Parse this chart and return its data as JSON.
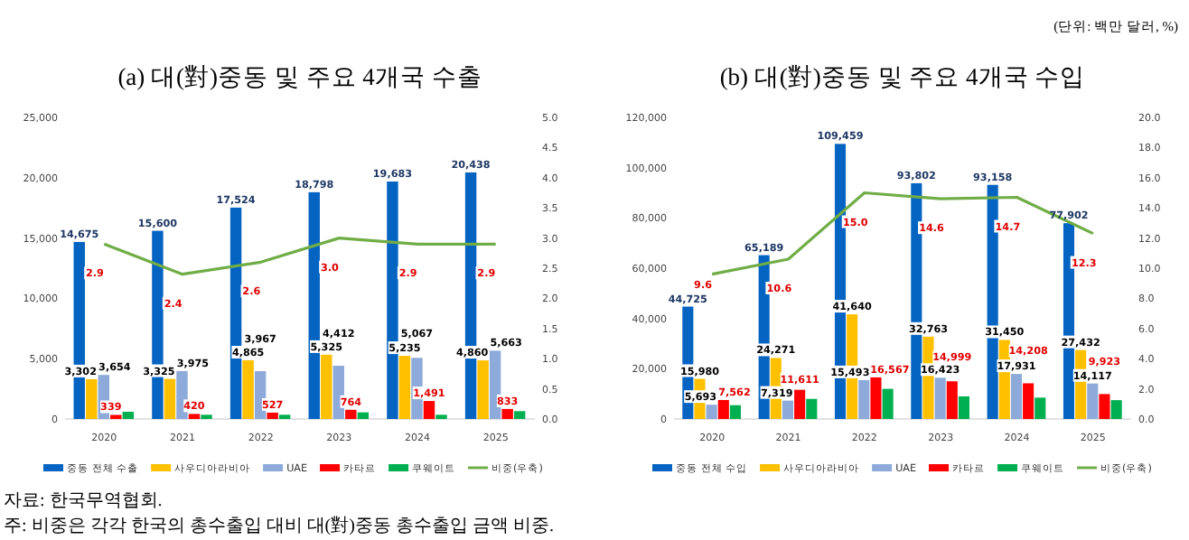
{
  "chart_data": [
    {
      "type": "bar",
      "title": "(a) 대(對)중동 및 주요 4개국 수출",
      "categories": [
        "2020",
        "2021",
        "2022",
        "2023",
        "2024",
        "2025"
      ],
      "ylim": [
        0,
        25000
      ],
      "yticks": [
        {
          "value": 0,
          "label": "0"
        },
        {
          "value": 5000,
          "label": "5,000"
        },
        {
          "value": 10000,
          "label": "10,000"
        },
        {
          "value": 15000,
          "label": "15,000"
        },
        {
          "value": 20000,
          "label": "20,000"
        },
        {
          "value": 25000,
          "label": "25,000"
        }
      ],
      "y2lim": [
        0,
        5
      ],
      "y2ticks": [
        {
          "value": 0,
          "label": "0.0"
        },
        {
          "value": 0.5,
          "label": "0.5"
        },
        {
          "value": 1,
          "label": "1.0"
        },
        {
          "value": 1.5,
          "label": "1.5"
        },
        {
          "value": 2,
          "label": "2.0"
        },
        {
          "value": 2.5,
          "label": "2.5"
        },
        {
          "value": 3,
          "label": "3.0"
        },
        {
          "value": 3.5,
          "label": "3.5"
        },
        {
          "value": 4,
          "label": "4.0"
        },
        {
          "value": 4.5,
          "label": "4.5"
        },
        {
          "value": 5,
          "label": "5.0"
        }
      ],
      "grid": false,
      "legend": "bottom",
      "series": [
        {
          "name": "중동 전체 수출",
          "color": "#0563c1",
          "values": [
            14675,
            15600,
            17524,
            18798,
            19683,
            20438
          ],
          "value_labels": [
            "14,675",
            "15,600",
            "17,524",
            "18,798",
            "19,683",
            "20,438"
          ]
        },
        {
          "name": "사우디아라비아",
          "color": "#ffc000",
          "values": [
            3302,
            3325,
            4865,
            5325,
            5235,
            4860
          ],
          "value_labels": [
            "3,302",
            "3,325",
            "4,865",
            "5,325",
            "5,235",
            "4,860"
          ]
        },
        {
          "name": "UAE",
          "color": "#8eaadb",
          "values": [
            3654,
            3975,
            3967,
            4412,
            5067,
            5663
          ],
          "value_labels": [
            "3,654",
            "3,975",
            "3,967",
            "4,412",
            "5,067",
            "5,663"
          ]
        },
        {
          "name": "카타르",
          "color": "#ff0000",
          "values": [
            339,
            420,
            527,
            764,
            1491,
            833
          ],
          "value_labels": [
            "339",
            "420",
            "527",
            "764",
            "1,491",
            "833"
          ]
        },
        {
          "name": "쿠웨이트",
          "color": "#00b050",
          "values": [
            600,
            350,
            350,
            550,
            350,
            650
          ]
        },
        {
          "name": "비중(우축)",
          "color": "#70ad47",
          "type": "line",
          "axis": "y2",
          "values": [
            2.9,
            2.4,
            2.6,
            3.0,
            2.9,
            2.9
          ],
          "value_labels": [
            "2.9",
            "2.4",
            "2.6",
            "3.0",
            "2.9",
            "2.9"
          ]
        }
      ],
      "annotations": [
        "자료: 한국무역협회.",
        "주: 비중은 각각 한국의 총수출입 대비 대(對)중동 총수출입 금액 비중."
      ]
    },
    {
      "type": "bar",
      "title": "(b) 대(對)중동 및 주요 4개국 수입",
      "categories": [
        "2020",
        "2021",
        "2022",
        "2023",
        "2024",
        "2025"
      ],
      "ylim": [
        0,
        120000
      ],
      "yticks": [
        {
          "value": 0,
          "label": "0"
        },
        {
          "value": 20000,
          "label": "20,000"
        },
        {
          "value": 40000,
          "label": "40,000"
        },
        {
          "value": 60000,
          "label": "60,000"
        },
        {
          "value": 80000,
          "label": "80,000"
        },
        {
          "value": 100000,
          "label": "100,000"
        },
        {
          "value": 120000,
          "label": "120,000"
        }
      ],
      "y2lim": [
        0,
        20
      ],
      "y2ticks": [
        {
          "value": 0,
          "label": "0.0"
        },
        {
          "value": 2,
          "label": "2.0"
        },
        {
          "value": 4,
          "label": "4.0"
        },
        {
          "value": 6,
          "label": "6.0"
        },
        {
          "value": 8,
          "label": "8.0"
        },
        {
          "value": 10,
          "label": "10.0"
        },
        {
          "value": 12,
          "label": "12.0"
        },
        {
          "value": 14,
          "label": "14.0"
        },
        {
          "value": 16,
          "label": "16.0"
        },
        {
          "value": 18,
          "label": "18.0"
        },
        {
          "value": 20,
          "label": "20.0"
        }
      ],
      "grid": false,
      "legend": "bottom",
      "series": [
        {
          "name": "중동 전체 수입",
          "color": "#0563c1",
          "values": [
            44725,
            65189,
            109459,
            93802,
            93158,
            77902
          ],
          "value_labels": [
            "44,725",
            "65,189",
            "109,459",
            "93,802",
            "93,158",
            "77,902"
          ]
        },
        {
          "name": "사우디아라비아",
          "color": "#ffc000",
          "values": [
            15980,
            24271,
            41640,
            32763,
            31450,
            27432
          ],
          "value_labels": [
            "15,980",
            "24,271",
            "41,640",
            "32,763",
            "31,450",
            "27,432"
          ]
        },
        {
          "name": "UAE",
          "color": "#8eaadb",
          "values": [
            5693,
            7319,
            15493,
            16423,
            17931,
            14117
          ],
          "value_labels": [
            "5,693",
            "7,319",
            "15,493",
            "16,423",
            "17,931",
            "14,117"
          ]
        },
        {
          "name": "카타르",
          "color": "#ff0000",
          "values": [
            7562,
            11611,
            16567,
            14999,
            14208,
            9923
          ],
          "value_labels": [
            "7,562",
            "11,611",
            "16,567",
            "14,999",
            "14,208",
            "9,923"
          ]
        },
        {
          "name": "쿠웨이트",
          "color": "#00b050",
          "values": [
            5500,
            8000,
            12000,
            9000,
            8500,
            7500
          ]
        },
        {
          "name": "비중(우축)",
          "color": "#70ad47",
          "type": "line",
          "axis": "y2",
          "values": [
            9.6,
            10.6,
            15.0,
            14.6,
            14.7,
            12.3
          ],
          "value_labels": [
            "9.6",
            "10.6",
            "15.0",
            "14.6",
            "14.7",
            "12.3"
          ]
        }
      ],
      "annotations": [
        "(단위: 백만 달러, %)"
      ]
    }
  ]
}
